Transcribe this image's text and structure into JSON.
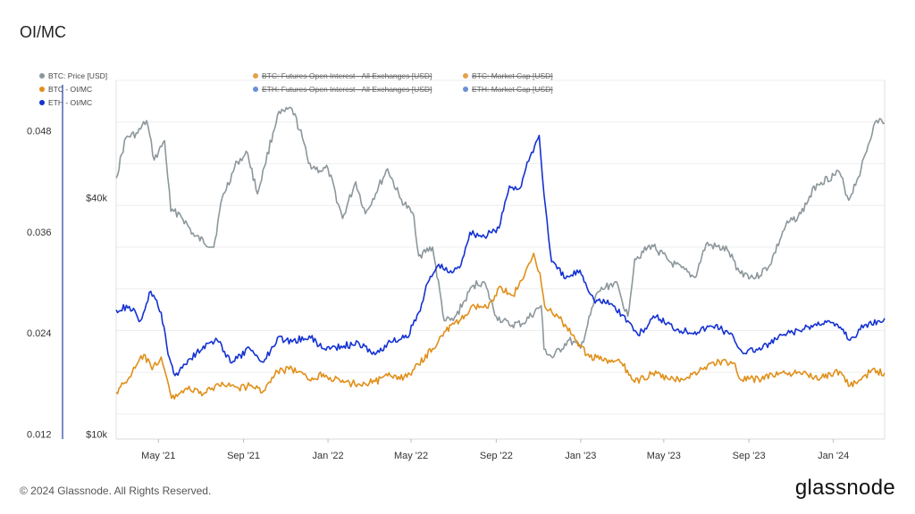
{
  "title": "OI/MC",
  "footer": "© 2024 Glassnode. All Rights Reserved.",
  "brand": "glassnode",
  "legend": [
    {
      "label": "BTC: Price [USD]",
      "color": "#8c979c",
      "active": true
    },
    {
      "label": "BTC - OI/MC",
      "color": "#e08f19",
      "active": true
    },
    {
      "label": "ETH - OI/MC",
      "color": "#1432d2",
      "active": true
    },
    {
      "label": "BTC: Futures Open Interest - All Exchanges [USD]",
      "color": "#e5a04a",
      "active": false
    },
    {
      "label": "ETH: Futures Open Interest - All Exchanges [USD]",
      "color": "#6b8fd6",
      "active": false
    },
    {
      "label": "BTC: Market Cap [USD]",
      "color": "#e5a04a",
      "active": false
    },
    {
      "label": "ETH: Market Cap [USD]",
      "color": "#6b8fd6",
      "active": false
    }
  ],
  "chart_data": {
    "type": "line",
    "title": "OI/MC",
    "x_ticks": [
      "May '21",
      "Sep '21",
      "Jan '22",
      "May '22",
      "Sep '22",
      "Jan '23",
      "May '23",
      "Sep '23",
      "Jan '24"
    ],
    "x_range": [
      "2021-03-01",
      "2024-03-15"
    ],
    "y_left": {
      "ticks": [
        "0.012",
        "0.024",
        "0.036",
        "0.048"
      ],
      "range": [
        0.012,
        0.048
      ]
    },
    "y_right": {
      "ticks": [
        "$10k",
        "$40k"
      ],
      "scale": "log",
      "range": [
        10000,
        60000
      ]
    },
    "grid": true,
    "legend_position": "top-left",
    "series": [
      {
        "name": "BTC: Price [USD]",
        "axis": "right",
        "color": "#8c979c",
        "points": [
          [
            "2021-03-01",
            45000
          ],
          [
            "2021-03-15",
            57000
          ],
          [
            "2021-04-01",
            58500
          ],
          [
            "2021-04-14",
            63000
          ],
          [
            "2021-04-25",
            50000
          ],
          [
            "2021-05-10",
            56000
          ],
          [
            "2021-05-19",
            37000
          ],
          [
            "2021-06-01",
            36500
          ],
          [
            "2021-06-22",
            32000
          ],
          [
            "2021-07-20",
            30000
          ],
          [
            "2021-08-01",
            40000
          ],
          [
            "2021-08-23",
            49500
          ],
          [
            "2021-09-07",
            52000
          ],
          [
            "2021-09-21",
            41000
          ],
          [
            "2021-10-01",
            48000
          ],
          [
            "2021-10-20",
            65000
          ],
          [
            "2021-11-10",
            67500
          ],
          [
            "2021-11-25",
            57000
          ],
          [
            "2021-12-04",
            49000
          ],
          [
            "2021-12-20",
            47000
          ],
          [
            "2022-01-01",
            47500
          ],
          [
            "2022-01-22",
            35500
          ],
          [
            "2022-02-10",
            44000
          ],
          [
            "2022-02-24",
            36500
          ],
          [
            "2022-03-28",
            47500
          ],
          [
            "2022-04-15",
            40000
          ],
          [
            "2022-05-05",
            36000
          ],
          [
            "2022-05-12",
            28500
          ],
          [
            "2022-06-01",
            30000
          ],
          [
            "2022-06-18",
            19500
          ],
          [
            "2022-07-01",
            19500
          ],
          [
            "2022-07-30",
            24000
          ],
          [
            "2022-08-14",
            24500
          ],
          [
            "2022-09-01",
            20000
          ],
          [
            "2022-09-20",
            19000
          ],
          [
            "2022-10-10",
            19200
          ],
          [
            "2022-11-05",
            21300
          ],
          [
            "2022-11-09",
            16500
          ],
          [
            "2022-11-21",
            15700
          ],
          [
            "2022-12-15",
            17400
          ],
          [
            "2023-01-01",
            16600
          ],
          [
            "2023-01-25",
            23000
          ],
          [
            "2023-02-20",
            24500
          ],
          [
            "2023-03-10",
            20000
          ],
          [
            "2023-03-20",
            28000
          ],
          [
            "2023-04-14",
            30400
          ],
          [
            "2023-05-10",
            27500
          ],
          [
            "2023-06-15",
            25100
          ],
          [
            "2023-07-01",
            30500
          ],
          [
            "2023-08-01",
            29500
          ],
          [
            "2023-08-18",
            26000
          ],
          [
            "2023-09-11",
            25100
          ],
          [
            "2023-10-01",
            27000
          ],
          [
            "2023-10-24",
            34000
          ],
          [
            "2023-11-15",
            36500
          ],
          [
            "2023-12-08",
            43500
          ],
          [
            "2024-01-10",
            46500
          ],
          [
            "2024-01-23",
            39500
          ],
          [
            "2024-02-10",
            47500
          ],
          [
            "2024-02-28",
            61000
          ],
          [
            "2024-03-10",
            63500
          ],
          [
            "2024-03-15",
            62000
          ]
        ]
      },
      {
        "name": "BTC - OI/MC",
        "axis": "left",
        "color": "#e08f19",
        "points": [
          [
            "2021-03-01",
            0.017
          ],
          [
            "2021-03-20",
            0.0188
          ],
          [
            "2021-04-10",
            0.0215
          ],
          [
            "2021-04-22",
            0.0197
          ],
          [
            "2021-05-05",
            0.0212
          ],
          [
            "2021-05-20",
            0.0163
          ],
          [
            "2021-06-10",
            0.0175
          ],
          [
            "2021-07-05",
            0.0168
          ],
          [
            "2021-08-01",
            0.0182
          ],
          [
            "2021-08-25",
            0.0175
          ],
          [
            "2021-09-10",
            0.0178
          ],
          [
            "2021-09-30",
            0.0172
          ],
          [
            "2021-10-20",
            0.0195
          ],
          [
            "2021-11-10",
            0.0198
          ],
          [
            "2021-12-05",
            0.0185
          ],
          [
            "2021-12-25",
            0.0192
          ],
          [
            "2022-01-20",
            0.0182
          ],
          [
            "2022-02-15",
            0.018
          ],
          [
            "2022-03-10",
            0.0183
          ],
          [
            "2022-04-01",
            0.019
          ],
          [
            "2022-04-25",
            0.0188
          ],
          [
            "2022-05-12",
            0.0203
          ],
          [
            "2022-06-01",
            0.0222
          ],
          [
            "2022-06-18",
            0.0242
          ],
          [
            "2022-07-10",
            0.0255
          ],
          [
            "2022-08-01",
            0.0272
          ],
          [
            "2022-08-20",
            0.027
          ],
          [
            "2022-09-05",
            0.0295
          ],
          [
            "2022-09-25",
            0.0285
          ],
          [
            "2022-10-10",
            0.0305
          ],
          [
            "2022-10-25",
            0.0335
          ],
          [
            "2022-11-03",
            0.0312
          ],
          [
            "2022-11-10",
            0.0272
          ],
          [
            "2022-12-01",
            0.0258
          ],
          [
            "2022-12-20",
            0.0238
          ],
          [
            "2023-01-10",
            0.0215
          ],
          [
            "2023-02-01",
            0.0208
          ],
          [
            "2023-03-01",
            0.0205
          ],
          [
            "2023-03-20",
            0.0182
          ],
          [
            "2023-04-15",
            0.0193
          ],
          [
            "2023-05-10",
            0.0185
          ],
          [
            "2023-06-05",
            0.0188
          ],
          [
            "2023-06-25",
            0.0198
          ],
          [
            "2023-07-20",
            0.0207
          ],
          [
            "2023-08-10",
            0.0205
          ],
          [
            "2023-08-20",
            0.0185
          ],
          [
            "2023-09-15",
            0.0186
          ],
          [
            "2023-10-15",
            0.0193
          ],
          [
            "2023-11-15",
            0.0192
          ],
          [
            "2023-12-15",
            0.0188
          ],
          [
            "2024-01-10",
            0.0195
          ],
          [
            "2024-01-25",
            0.0178
          ],
          [
            "2024-02-10",
            0.0185
          ],
          [
            "2024-02-25",
            0.0196
          ],
          [
            "2024-03-15",
            0.0193
          ]
        ]
      },
      {
        "name": "ETH - OI/MC",
        "axis": "left",
        "color": "#1432d2",
        "points": [
          [
            "2021-03-01",
            0.0268
          ],
          [
            "2021-03-20",
            0.0272
          ],
          [
            "2021-04-05",
            0.0255
          ],
          [
            "2021-04-20",
            0.029
          ],
          [
            "2021-05-05",
            0.0265
          ],
          [
            "2021-05-15",
            0.0215
          ],
          [
            "2021-05-25",
            0.019
          ],
          [
            "2021-06-15",
            0.021
          ],
          [
            "2021-07-05",
            0.0225
          ],
          [
            "2021-07-25",
            0.0232
          ],
          [
            "2021-08-15",
            0.0205
          ],
          [
            "2021-09-10",
            0.0222
          ],
          [
            "2021-09-30",
            0.0206
          ],
          [
            "2021-10-20",
            0.0235
          ],
          [
            "2021-11-10",
            0.023
          ],
          [
            "2021-12-05",
            0.0237
          ],
          [
            "2021-12-25",
            0.0222
          ],
          [
            "2022-01-20",
            0.0225
          ],
          [
            "2022-02-15",
            0.0228
          ],
          [
            "2022-03-10",
            0.0215
          ],
          [
            "2022-04-01",
            0.023
          ],
          [
            "2022-04-25",
            0.0235
          ],
          [
            "2022-05-12",
            0.0265
          ],
          [
            "2022-05-25",
            0.03
          ],
          [
            "2022-06-10",
            0.0322
          ],
          [
            "2022-06-25",
            0.0312
          ],
          [
            "2022-07-10",
            0.0318
          ],
          [
            "2022-07-25",
            0.036
          ],
          [
            "2022-08-15",
            0.0355
          ],
          [
            "2022-09-05",
            0.0365
          ],
          [
            "2022-09-20",
            0.0415
          ],
          [
            "2022-10-05",
            0.0412
          ],
          [
            "2022-10-20",
            0.045
          ],
          [
            "2022-11-02",
            0.0475
          ],
          [
            "2022-11-09",
            0.0405
          ],
          [
            "2022-11-20",
            0.0325
          ],
          [
            "2022-12-10",
            0.0305
          ],
          [
            "2022-12-31",
            0.0315
          ],
          [
            "2023-01-20",
            0.028
          ],
          [
            "2023-02-15",
            0.0275
          ],
          [
            "2023-03-10",
            0.0255
          ],
          [
            "2023-03-25",
            0.0238
          ],
          [
            "2023-04-20",
            0.026
          ],
          [
            "2023-05-20",
            0.0245
          ],
          [
            "2023-06-15",
            0.0242
          ],
          [
            "2023-07-15",
            0.025
          ],
          [
            "2023-08-10",
            0.0235
          ],
          [
            "2023-08-22",
            0.0218
          ],
          [
            "2023-09-20",
            0.0222
          ],
          [
            "2023-10-20",
            0.0238
          ],
          [
            "2023-11-20",
            0.0245
          ],
          [
            "2023-12-20",
            0.0255
          ],
          [
            "2024-01-15",
            0.0245
          ],
          [
            "2024-01-25",
            0.0232
          ],
          [
            "2024-02-15",
            0.025
          ],
          [
            "2024-03-05",
            0.0255
          ],
          [
            "2024-03-15",
            0.0258
          ]
        ]
      }
    ]
  }
}
